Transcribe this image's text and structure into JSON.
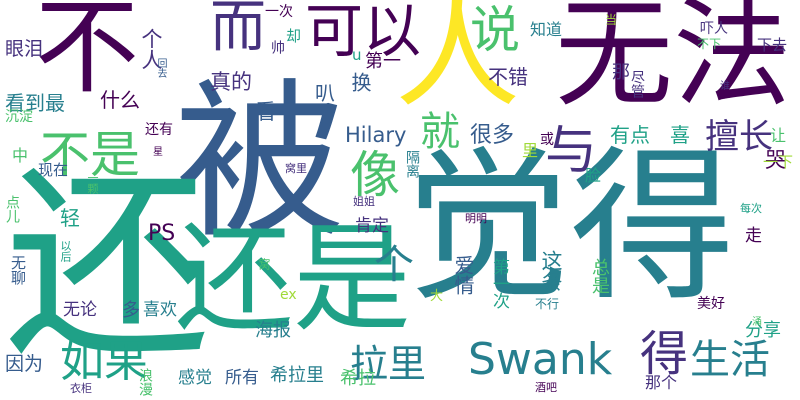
{
  "palette": {
    "c1": "#440154",
    "c2": "#46327e",
    "c3": "#365c8d",
    "c4": "#277f8e",
    "c5": "#1fa187",
    "c6": "#4ac16d",
    "c7": "#a0da39",
    "c8": "#fde725"
  },
  "words": [
    "被",
    "觉得",
    "还是",
    "不",
    "无法",
    "人",
    "还",
    "可以",
    "说",
    "而",
    "像",
    "不是",
    "与",
    "就",
    "如果",
    "Swank",
    "得",
    "生活",
    "拉里",
    "个",
    "真的",
    "擅长",
    "Hilary",
    "个人",
    "不错",
    "很多",
    "眼泪",
    "什么",
    "看到最",
    "看",
    "换",
    "有点",
    "喜",
    "哭",
    "PS",
    "肯定",
    "第一",
    "分享",
    "感觉",
    "所有",
    "希拉里",
    "希拉",
    "因为",
    "无论",
    "多",
    "喜欢",
    "海报",
    "爱情",
    "这条",
    "第一次",
    "总是",
    "下去",
    "吓人",
    "那",
    "尽管",
    "知道",
    "当",
    "一次",
    "却",
    "帅",
    "叭",
    "u",
    "还有",
    "现在",
    "沉淀",
    "一颗",
    "轻",
    "点儿",
    "无聊",
    "以后",
    "脸",
    "或",
    "里",
    "隔离",
    "让",
    "一下",
    "每次",
    "走",
    "美好",
    "涌",
    "谁",
    "大",
    "不行",
    "ex",
    "窝",
    "窝里",
    "姐姐",
    "明明",
    "衣柜",
    "酒吧",
    "那个",
    "浪漫",
    "星",
    "中",
    "不下",
    "回去"
  ]
}
